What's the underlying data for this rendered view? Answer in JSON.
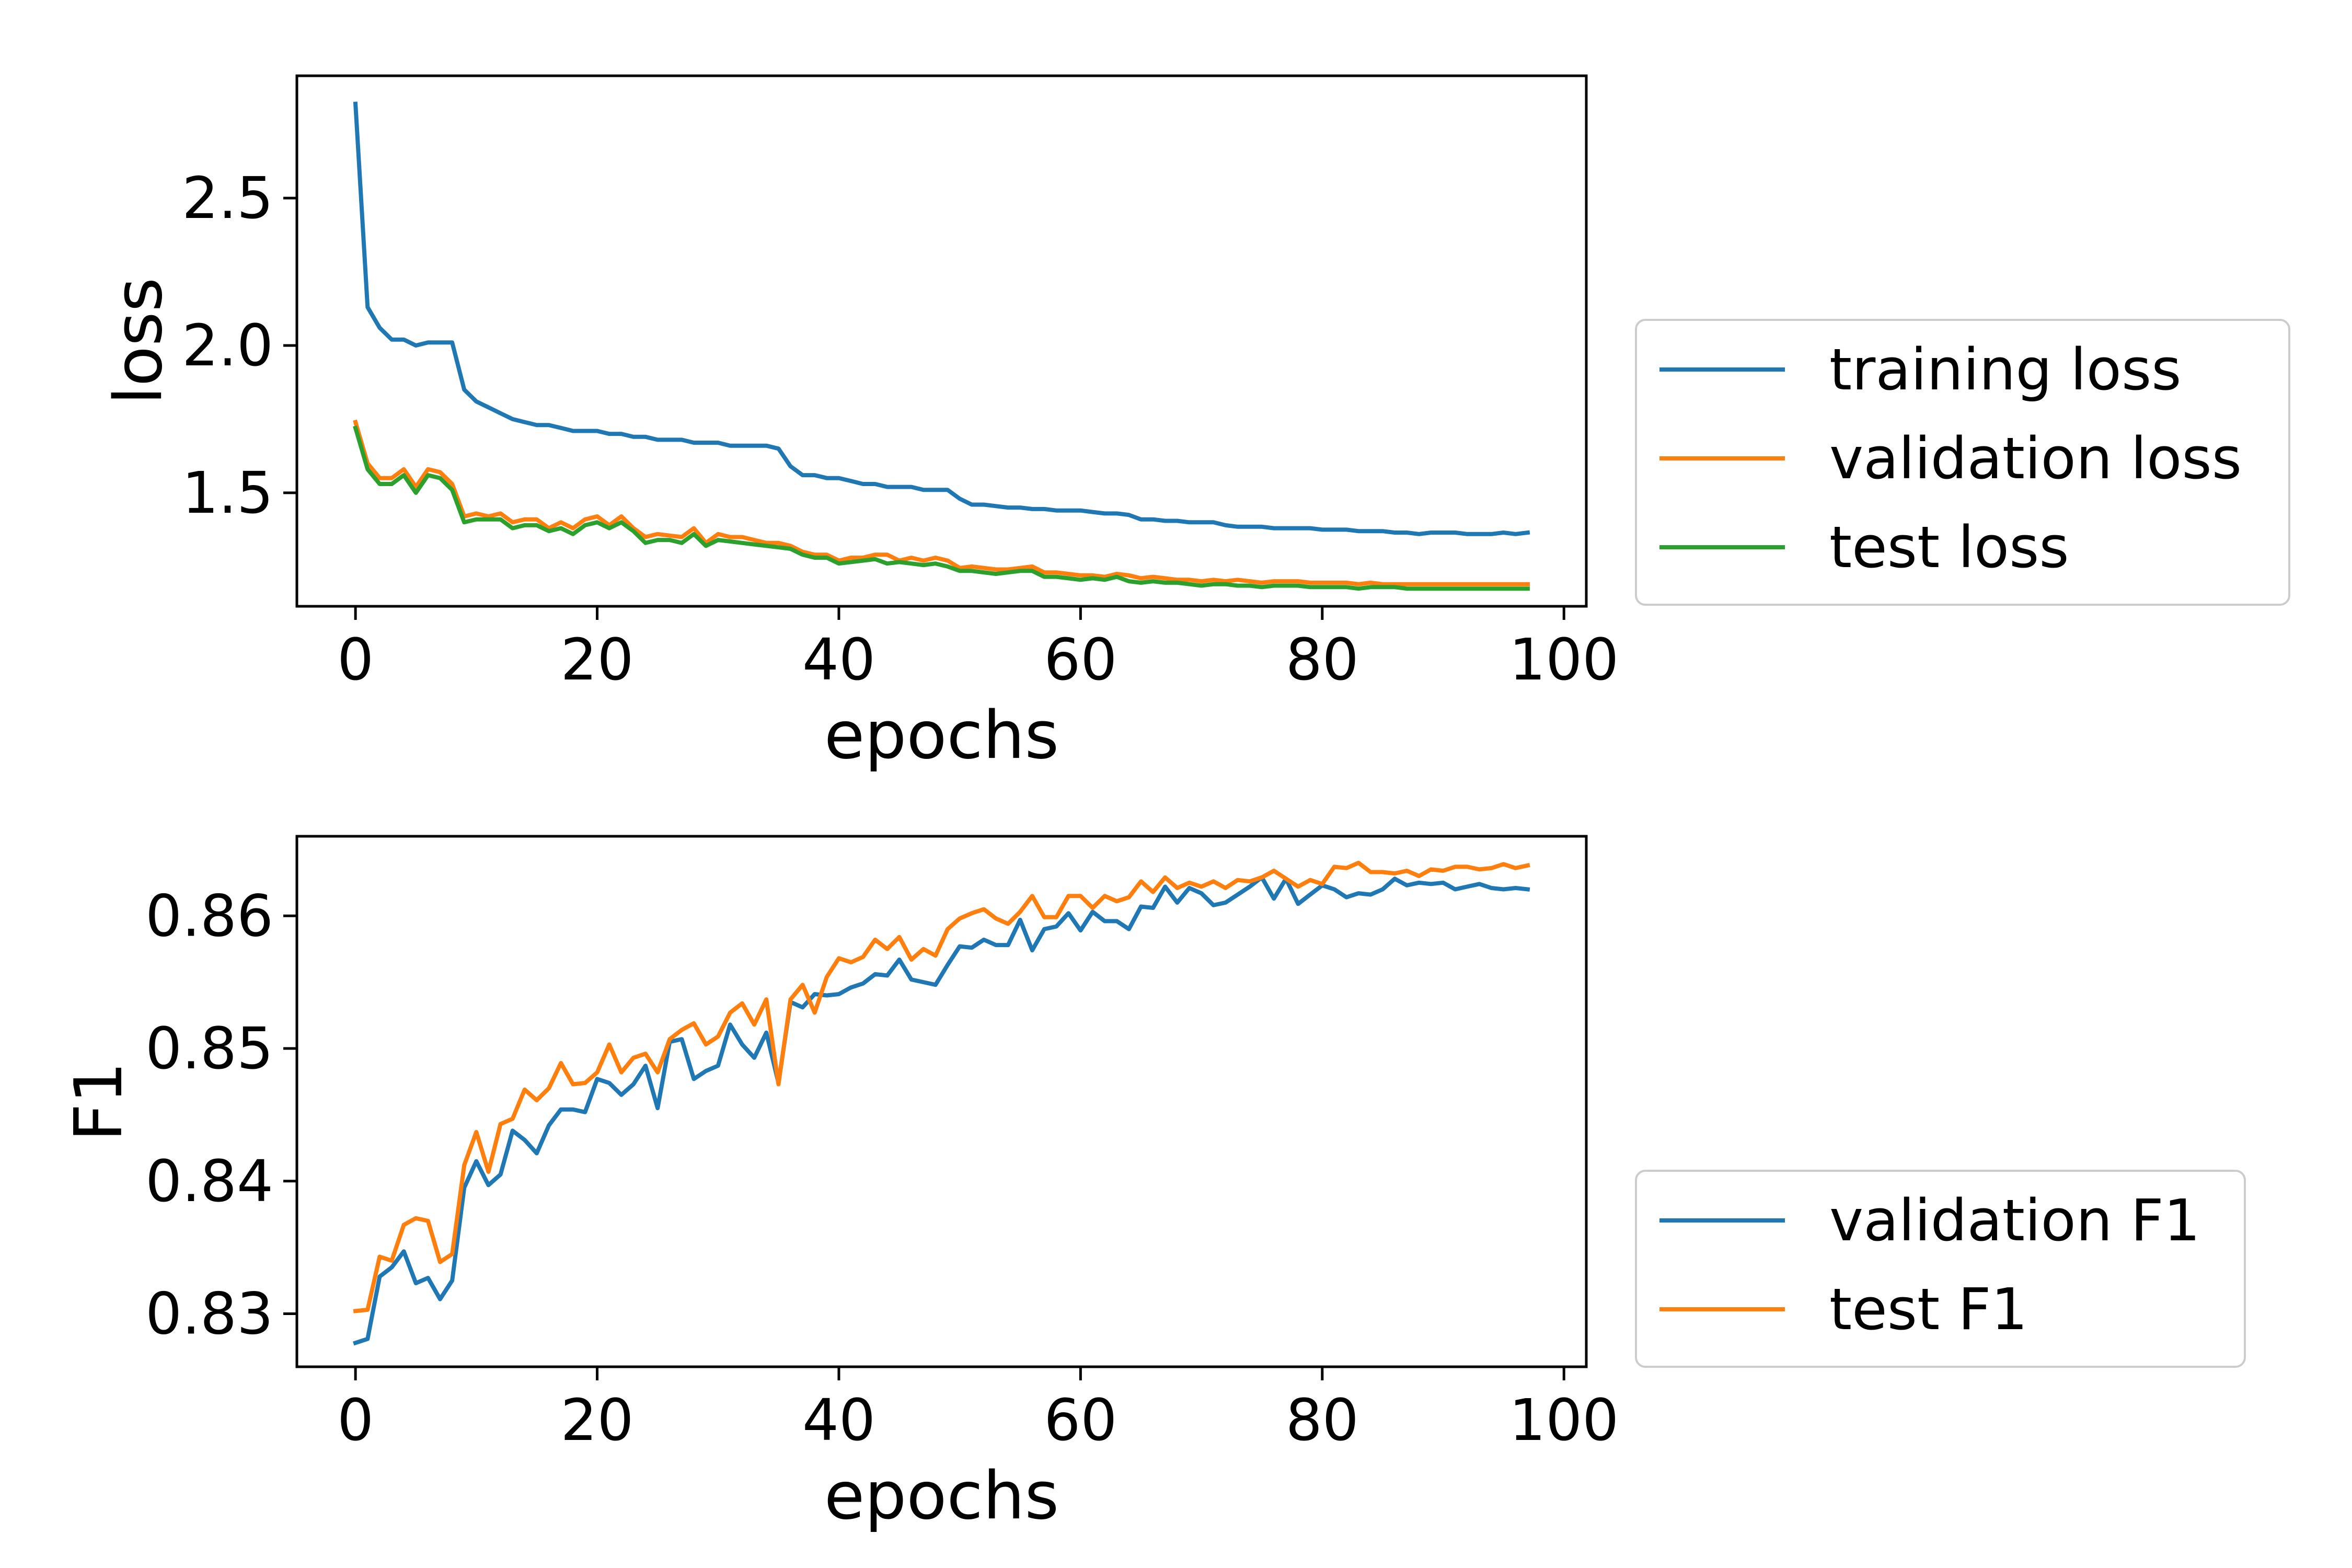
{
  "chart_data": [
    {
      "type": "line",
      "xlabel": "epochs",
      "ylabel": "loss",
      "xlim": [
        -4.85,
        101.85
      ],
      "ylim": [
        1.115,
        2.915
      ],
      "xticks": [
        0,
        20,
        40,
        60,
        80,
        100
      ],
      "xtick_labels": [
        "0",
        "20",
        "40",
        "60",
        "80",
        "100"
      ],
      "yticks": [
        1.5,
        2.0,
        2.5
      ],
      "ytick_labels": [
        "1.5",
        "2.0",
        "2.5"
      ],
      "grid": false,
      "legend_position": "right",
      "series": [
        {
          "name": "training loss",
          "color": "#1f77b4",
          "x": [
            0,
            1,
            2,
            3,
            4,
            5,
            6,
            7,
            8,
            9,
            10,
            11,
            12,
            13,
            14,
            15,
            16,
            17,
            18,
            19,
            20,
            21,
            22,
            23,
            24,
            25,
            26,
            27,
            28,
            29,
            30,
            31,
            32,
            33,
            34,
            35,
            36,
            37,
            38,
            39,
            40,
            41,
            42,
            43,
            44,
            45,
            46,
            47,
            48,
            49,
            50,
            51,
            52,
            53,
            54,
            55,
            56,
            57,
            58,
            59,
            60,
            61,
            62,
            63,
            64,
            65,
            66,
            67,
            68,
            69,
            70,
            71,
            72,
            73,
            74,
            75,
            76,
            77,
            78,
            79,
            80,
            81,
            82,
            83,
            84,
            85,
            86,
            87,
            88,
            89,
            90,
            91,
            92,
            93,
            94,
            95,
            96,
            97
          ],
          "values": [
            2.82,
            2.13,
            2.06,
            2.02,
            2.02,
            2.0,
            2.01,
            2.01,
            2.01,
            1.85,
            1.81,
            1.79,
            1.77,
            1.75,
            1.74,
            1.73,
            1.73,
            1.72,
            1.71,
            1.71,
            1.71,
            1.7,
            1.7,
            1.69,
            1.69,
            1.68,
            1.68,
            1.68,
            1.67,
            1.67,
            1.67,
            1.66,
            1.66,
            1.66,
            1.66,
            1.65,
            1.59,
            1.56,
            1.56,
            1.55,
            1.55,
            1.54,
            1.53,
            1.53,
            1.52,
            1.52,
            1.52,
            1.51,
            1.51,
            1.51,
            1.48,
            1.46,
            1.46,
            1.455,
            1.45,
            1.45,
            1.445,
            1.445,
            1.44,
            1.44,
            1.44,
            1.435,
            1.43,
            1.43,
            1.425,
            1.41,
            1.41,
            1.405,
            1.405,
            1.4,
            1.4,
            1.4,
            1.39,
            1.385,
            1.385,
            1.385,
            1.38,
            1.38,
            1.38,
            1.38,
            1.375,
            1.375,
            1.375,
            1.37,
            1.37,
            1.37,
            1.365,
            1.365,
            1.36,
            1.365,
            1.365,
            1.365,
            1.36,
            1.36,
            1.36,
            1.365,
            1.36,
            1.365
          ]
        },
        {
          "name": "validation loss",
          "color": "#ff7f0e",
          "x": [
            0,
            1,
            2,
            3,
            4,
            5,
            6,
            7,
            8,
            9,
            10,
            11,
            12,
            13,
            14,
            15,
            16,
            17,
            18,
            19,
            20,
            21,
            22,
            23,
            24,
            25,
            26,
            27,
            28,
            29,
            30,
            31,
            32,
            33,
            34,
            35,
            36,
            37,
            38,
            39,
            40,
            41,
            42,
            43,
            44,
            45,
            46,
            47,
            48,
            49,
            50,
            51,
            52,
            53,
            54,
            55,
            56,
            57,
            58,
            59,
            60,
            61,
            62,
            63,
            64,
            65,
            66,
            67,
            68,
            69,
            70,
            71,
            72,
            73,
            74,
            75,
            76,
            77,
            78,
            79,
            80,
            81,
            82,
            83,
            84,
            85,
            86,
            87,
            88,
            89,
            90,
            91,
            92,
            93,
            94,
            95,
            96,
            97
          ],
          "values": [
            1.74,
            1.6,
            1.55,
            1.55,
            1.58,
            1.52,
            1.58,
            1.57,
            1.53,
            1.42,
            1.43,
            1.42,
            1.43,
            1.4,
            1.41,
            1.41,
            1.38,
            1.4,
            1.38,
            1.41,
            1.42,
            1.39,
            1.42,
            1.38,
            1.35,
            1.36,
            1.355,
            1.35,
            1.38,
            1.33,
            1.36,
            1.35,
            1.35,
            1.34,
            1.33,
            1.33,
            1.32,
            1.3,
            1.29,
            1.29,
            1.27,
            1.28,
            1.28,
            1.29,
            1.29,
            1.27,
            1.28,
            1.27,
            1.28,
            1.27,
            1.245,
            1.25,
            1.245,
            1.24,
            1.24,
            1.245,
            1.25,
            1.23,
            1.23,
            1.225,
            1.22,
            1.22,
            1.215,
            1.225,
            1.22,
            1.21,
            1.215,
            1.21,
            1.205,
            1.205,
            1.2,
            1.205,
            1.2,
            1.205,
            1.2,
            1.195,
            1.2,
            1.2,
            1.2,
            1.195,
            1.195,
            1.195,
            1.195,
            1.19,
            1.195,
            1.19,
            1.19,
            1.19,
            1.19,
            1.19,
            1.19,
            1.19,
            1.19,
            1.19,
            1.19,
            1.19,
            1.19,
            1.19
          ]
        },
        {
          "name": "test loss",
          "color": "#2ca02c",
          "x": [
            0,
            1,
            2,
            3,
            4,
            5,
            6,
            7,
            8,
            9,
            10,
            11,
            12,
            13,
            14,
            15,
            16,
            17,
            18,
            19,
            20,
            21,
            22,
            23,
            24,
            25,
            26,
            27,
            28,
            29,
            30,
            31,
            32,
            33,
            34,
            35,
            36,
            37,
            38,
            39,
            40,
            41,
            42,
            43,
            44,
            45,
            46,
            47,
            48,
            49,
            50,
            51,
            52,
            53,
            54,
            55,
            56,
            57,
            58,
            59,
            60,
            61,
            62,
            63,
            64,
            65,
            66,
            67,
            68,
            69,
            70,
            71,
            72,
            73,
            74,
            75,
            76,
            77,
            78,
            79,
            80,
            81,
            82,
            83,
            84,
            85,
            86,
            87,
            88,
            89,
            90,
            91,
            92,
            93,
            94,
            95,
            96,
            97
          ],
          "values": [
            1.72,
            1.58,
            1.53,
            1.53,
            1.56,
            1.5,
            1.56,
            1.55,
            1.51,
            1.4,
            1.41,
            1.41,
            1.41,
            1.38,
            1.39,
            1.39,
            1.37,
            1.38,
            1.36,
            1.39,
            1.4,
            1.38,
            1.4,
            1.37,
            1.33,
            1.34,
            1.34,
            1.33,
            1.36,
            1.32,
            1.34,
            1.335,
            1.33,
            1.325,
            1.32,
            1.315,
            1.31,
            1.29,
            1.28,
            1.28,
            1.26,
            1.265,
            1.27,
            1.275,
            1.26,
            1.265,
            1.26,
            1.255,
            1.26,
            1.25,
            1.235,
            1.235,
            1.23,
            1.225,
            1.23,
            1.235,
            1.235,
            1.215,
            1.215,
            1.21,
            1.205,
            1.21,
            1.205,
            1.215,
            1.2,
            1.195,
            1.2,
            1.195,
            1.195,
            1.19,
            1.185,
            1.19,
            1.19,
            1.185,
            1.185,
            1.18,
            1.185,
            1.185,
            1.185,
            1.18,
            1.18,
            1.18,
            1.18,
            1.175,
            1.18,
            1.18,
            1.18,
            1.175,
            1.175,
            1.175,
            1.175,
            1.175,
            1.175,
            1.175,
            1.175,
            1.175,
            1.175,
            1.175
          ]
        }
      ]
    },
    {
      "type": "line",
      "xlabel": "epochs",
      "ylabel": "F1",
      "xlim": [
        -4.85,
        101.85
      ],
      "ylim": [
        0.826,
        0.866
      ],
      "xticks": [
        0,
        20,
        40,
        60,
        80,
        100
      ],
      "xtick_labels": [
        "0",
        "20",
        "40",
        "60",
        "80",
        "100"
      ],
      "yticks": [
        0.83,
        0.84,
        0.85,
        0.86
      ],
      "ytick_labels": [
        "0.83",
        "0.84",
        "0.85",
        "0.86"
      ],
      "grid": false,
      "legend_position": "right",
      "series": [
        {
          "name": "validation F1",
          "color": "#1f77b4",
          "x": [
            0,
            1,
            2,
            3,
            4,
            5,
            6,
            7,
            8,
            9,
            10,
            11,
            12,
            13,
            14,
            15,
            16,
            17,
            18,
            19,
            20,
            21,
            22,
            23,
            24,
            25,
            26,
            27,
            28,
            29,
            30,
            31,
            32,
            33,
            34,
            35,
            36,
            37,
            38,
            39,
            40,
            41,
            42,
            43,
            44,
            45,
            46,
            47,
            48,
            49,
            50,
            51,
            52,
            53,
            54,
            55,
            56,
            57,
            58,
            59,
            60,
            61,
            62,
            63,
            64,
            65,
            66,
            67,
            68,
            69,
            70,
            71,
            72,
            73,
            74,
            75,
            76,
            77,
            78,
            79,
            80,
            81,
            82,
            83,
            84,
            85,
            86,
            87,
            88,
            89,
            90,
            91,
            92,
            93,
            94,
            95,
            96,
            97
          ],
          "values": [
            0.8278,
            0.8281,
            0.8328,
            0.8335,
            0.8347,
            0.8323,
            0.8327,
            0.8311,
            0.8325,
            0.8395,
            0.8415,
            0.8397,
            0.8405,
            0.8438,
            0.8431,
            0.8421,
            0.8442,
            0.8454,
            0.8454,
            0.8452,
            0.8477,
            0.8474,
            0.8465,
            0.8473,
            0.8487,
            0.8455,
            0.8505,
            0.8507,
            0.8477,
            0.8483,
            0.8487,
            0.8518,
            0.8503,
            0.8493,
            0.8512,
            0.8474,
            0.8535,
            0.8531,
            0.8541,
            0.854,
            0.8541,
            0.8546,
            0.8549,
            0.8556,
            0.8555,
            0.8567,
            0.8552,
            0.855,
            0.8548,
            0.8563,
            0.8577,
            0.8576,
            0.8582,
            0.8578,
            0.8578,
            0.8597,
            0.8574,
            0.859,
            0.8592,
            0.8602,
            0.8589,
            0.8603,
            0.8596,
            0.8596,
            0.859,
            0.8607,
            0.8606,
            0.8622,
            0.861,
            0.8621,
            0.8617,
            0.8608,
            0.861,
            0.8616,
            0.8622,
            0.8629,
            0.8613,
            0.8628,
            0.8609,
            0.8616,
            0.8623,
            0.862,
            0.8614,
            0.8617,
            0.8616,
            0.862,
            0.8628,
            0.8623,
            0.8625,
            0.8624,
            0.8625,
            0.862,
            0.8622,
            0.8624,
            0.8621,
            0.862,
            0.8621,
            0.862
          ]
        },
        {
          "name": "test F1",
          "color": "#ff7f0e",
          "x": [
            0,
            1,
            2,
            3,
            4,
            5,
            6,
            7,
            8,
            9,
            10,
            11,
            12,
            13,
            14,
            15,
            16,
            17,
            18,
            19,
            20,
            21,
            22,
            23,
            24,
            25,
            26,
            27,
            28,
            29,
            30,
            31,
            32,
            33,
            34,
            35,
            36,
            37,
            38,
            39,
            40,
            41,
            42,
            43,
            44,
            45,
            46,
            47,
            48,
            49,
            50,
            51,
            52,
            53,
            54,
            55,
            56,
            57,
            58,
            59,
            60,
            61,
            62,
            63,
            64,
            65,
            66,
            67,
            68,
            69,
            70,
            71,
            72,
            73,
            74,
            75,
            76,
            77,
            78,
            79,
            80,
            81,
            82,
            83,
            84,
            85,
            86,
            87,
            88,
            89,
            90,
            91,
            92,
            93,
            94,
            95,
            96,
            97
          ],
          "values": [
            0.8302,
            0.8303,
            0.8343,
            0.834,
            0.8367,
            0.8372,
            0.837,
            0.8339,
            0.8345,
            0.8412,
            0.8437,
            0.8407,
            0.8443,
            0.8447,
            0.8469,
            0.8461,
            0.847,
            0.8489,
            0.8473,
            0.8474,
            0.8482,
            0.8503,
            0.8482,
            0.8493,
            0.8496,
            0.8482,
            0.8507,
            0.8514,
            0.8519,
            0.8503,
            0.8509,
            0.8527,
            0.8534,
            0.8518,
            0.8537,
            0.8473,
            0.8537,
            0.8548,
            0.8527,
            0.8554,
            0.8568,
            0.8565,
            0.8569,
            0.8582,
            0.8575,
            0.8584,
            0.8567,
            0.8575,
            0.857,
            0.859,
            0.8598,
            0.8602,
            0.8605,
            0.8598,
            0.8594,
            0.8603,
            0.8615,
            0.8599,
            0.8599,
            0.8615,
            0.8615,
            0.8606,
            0.8615,
            0.8611,
            0.8614,
            0.8626,
            0.8618,
            0.8629,
            0.8621,
            0.8625,
            0.8622,
            0.8626,
            0.8621,
            0.8627,
            0.8626,
            0.8629,
            0.8634,
            0.8628,
            0.8622,
            0.8627,
            0.8624,
            0.8637,
            0.8636,
            0.864,
            0.8633,
            0.8633,
            0.8632,
            0.8634,
            0.863,
            0.8635,
            0.8634,
            0.8637,
            0.8637,
            0.8635,
            0.8636,
            0.8639,
            0.8636,
            0.8638
          ]
        }
      ]
    }
  ]
}
